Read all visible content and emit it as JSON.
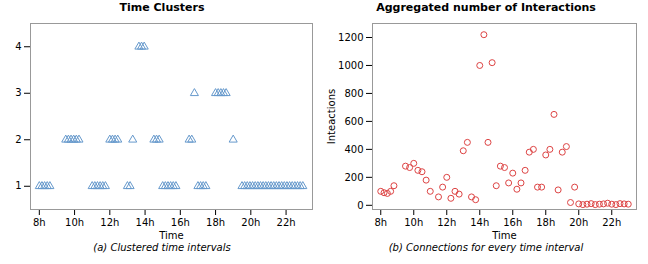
{
  "chart_data": [
    {
      "type": "scatter",
      "title": "Time Clusters",
      "xlabel": "Time",
      "caption": "(a) Clustered time intervals",
      "x": [
        8.0,
        8.15,
        8.3,
        8.45,
        8.6,
        11.0,
        11.15,
        11.3,
        11.45,
        11.6,
        11.75,
        13.0,
        13.15,
        15.0,
        15.15,
        15.3,
        15.45,
        15.6,
        15.75,
        17.0,
        17.15,
        17.3,
        17.45,
        19.5,
        19.65,
        19.8,
        19.95,
        20.1,
        20.25,
        20.4,
        20.55,
        20.7,
        20.85,
        21.0,
        21.15,
        21.3,
        21.45,
        21.6,
        21.75,
        21.9,
        22.05,
        22.2,
        22.35,
        22.5,
        22.65,
        22.8,
        22.95,
        9.5,
        9.65,
        9.8,
        9.95,
        10.1,
        10.25,
        12.0,
        12.15,
        12.3,
        12.45,
        13.3,
        14.5,
        14.65,
        14.8,
        16.5,
        16.65,
        19.0,
        16.8,
        18.0,
        18.15,
        18.3,
        18.45,
        18.6,
        13.65,
        13.8,
        13.95
      ],
      "values": [
        1,
        1,
        1,
        1,
        1,
        1,
        1,
        1,
        1,
        1,
        1,
        1,
        1,
        1,
        1,
        1,
        1,
        1,
        1,
        1,
        1,
        1,
        1,
        1,
        1,
        1,
        1,
        1,
        1,
        1,
        1,
        1,
        1,
        1,
        1,
        1,
        1,
        1,
        1,
        1,
        1,
        1,
        1,
        1,
        1,
        1,
        1,
        2,
        2,
        2,
        2,
        2,
        2,
        2,
        2,
        2,
        2,
        2,
        2,
        2,
        2,
        2,
        2,
        2,
        3,
        3,
        3,
        3,
        3,
        3,
        4,
        4,
        4
      ],
      "color": "#6699cc",
      "marker": "triangle",
      "xlim": [
        7.5,
        23.5
      ],
      "xticks": [
        {
          "value": 8,
          "label": "8h"
        },
        {
          "value": 10,
          "label": "10h"
        },
        {
          "value": 12,
          "label": "12h"
        },
        {
          "value": 14,
          "label": "14h"
        },
        {
          "value": 16,
          "label": "16h"
        },
        {
          "value": 18,
          "label": "18h"
        },
        {
          "value": 20,
          "label": "20h"
        },
        {
          "value": 22,
          "label": "22h"
        }
      ],
      "ylim": [
        0.5,
        4.5
      ],
      "yticks": [
        1,
        2,
        3,
        4
      ]
    },
    {
      "type": "scatter",
      "title": "Aggregated number of Interactions",
      "xlabel": "Time",
      "ylabel": "Inteactions",
      "caption": "(b) Connections for every time interval",
      "x": [
        8.0,
        8.2,
        8.4,
        8.6,
        8.8,
        9.5,
        9.75,
        10.0,
        10.25,
        10.5,
        10.75,
        11.0,
        11.5,
        11.75,
        12.0,
        12.25,
        12.5,
        12.75,
        13.0,
        13.25,
        13.5,
        13.75,
        14.0,
        14.25,
        14.5,
        14.75,
        15.0,
        15.25,
        15.5,
        15.75,
        16.0,
        16.25,
        16.5,
        16.75,
        17.0,
        17.25,
        17.5,
        17.75,
        18.0,
        18.25,
        18.5,
        18.75,
        19.0,
        19.25,
        19.5,
        19.75,
        20.0,
        20.25,
        20.5,
        20.75,
        21.0,
        21.25,
        21.5,
        21.75,
        22.0,
        22.25,
        22.5,
        22.75,
        23.0
      ],
      "values": [
        100,
        90,
        85,
        100,
        140,
        280,
        270,
        300,
        250,
        240,
        180,
        100,
        60,
        130,
        200,
        50,
        100,
        80,
        390,
        450,
        60,
        40,
        1000,
        1220,
        450,
        1020,
        140,
        280,
        270,
        160,
        230,
        115,
        160,
        250,
        380,
        400,
        130,
        130,
        360,
        400,
        650,
        110,
        380,
        420,
        20,
        130,
        10,
        5,
        8,
        12,
        5,
        8,
        10,
        15,
        8,
        5,
        12,
        10,
        8
      ],
      "color": "#dd4444",
      "marker": "circle",
      "xlim": [
        7.5,
        23.5
      ],
      "xticks": [
        {
          "value": 8,
          "label": "8h"
        },
        {
          "value": 10,
          "label": "10h"
        },
        {
          "value": 12,
          "label": "12h"
        },
        {
          "value": 14,
          "label": "14h"
        },
        {
          "value": 16,
          "label": "16h"
        },
        {
          "value": 18,
          "label": "18h"
        },
        {
          "value": 20,
          "label": "20h"
        },
        {
          "value": 22,
          "label": "22h"
        }
      ],
      "ylim": [
        -30,
        1300
      ],
      "yticks": [
        0,
        200,
        400,
        600,
        800,
        1000,
        1200
      ]
    }
  ]
}
